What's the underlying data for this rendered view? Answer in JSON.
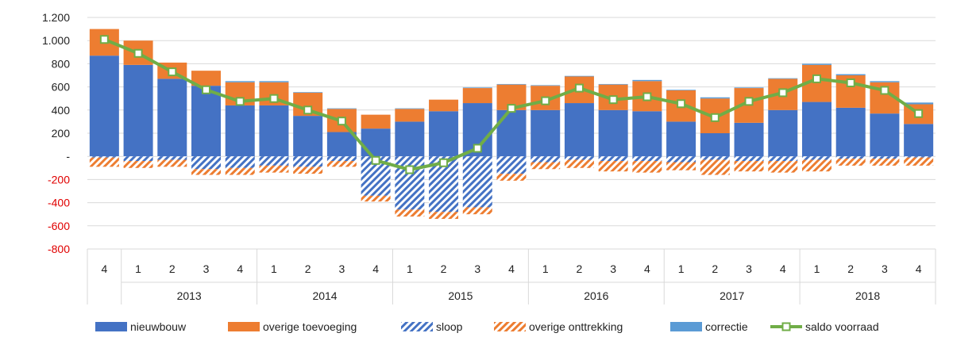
{
  "chart_data": {
    "type": "bar",
    "stacked": true,
    "title": "",
    "xlabel": "",
    "ylabel": "",
    "ylim": [
      -800,
      1200
    ],
    "y_ticks": [
      {
        "value": 1200,
        "label": "1.200"
      },
      {
        "value": 1000,
        "label": "1.000"
      },
      {
        "value": 800,
        "label": "800"
      },
      {
        "value": 600,
        "label": "600"
      },
      {
        "value": 400,
        "label": "400"
      },
      {
        "value": 200,
        "label": "200"
      },
      {
        "value": 0,
        "label": "-"
      },
      {
        "value": -200,
        "label": "-200"
      },
      {
        "value": -400,
        "label": "-400"
      },
      {
        "value": -600,
        "label": "-600"
      },
      {
        "value": -800,
        "label": "-800"
      }
    ],
    "negative_tick_color": "#e00000",
    "positive_tick_color": "#222222",
    "grid": true,
    "legend_position": "bottom",
    "categories": [
      "4",
      "1",
      "2",
      "3",
      "4",
      "1",
      "2",
      "3",
      "4",
      "1",
      "2",
      "3",
      "4",
      "1",
      "2",
      "3",
      "4",
      "1",
      "2",
      "3",
      "4",
      "1",
      "2",
      "3",
      "4"
    ],
    "year_groups": [
      {
        "label": "",
        "span": 1
      },
      {
        "label": "2013",
        "span": 4
      },
      {
        "label": "2014",
        "span": 4
      },
      {
        "label": "2015",
        "span": 4
      },
      {
        "label": "2016",
        "span": 4
      },
      {
        "label": "2017",
        "span": 4
      },
      {
        "label": "2018",
        "span": 4
      }
    ],
    "series": [
      {
        "name": "nieuwbouw",
        "kind": "bar",
        "color": "#4472c4",
        "pattern": "solid",
        "values": [
          870,
          790,
          670,
          610,
          440,
          440,
          350,
          210,
          240,
          300,
          390,
          460,
          400,
          400,
          460,
          400,
          390,
          300,
          200,
          290,
          400,
          470,
          420,
          370,
          280
        ]
      },
      {
        "name": "overige toevoeging",
        "kind": "bar",
        "color": "#ed7d31",
        "pattern": "solid",
        "values": [
          230,
          210,
          140,
          130,
          200,
          200,
          200,
          200,
          120,
          110,
          100,
          130,
          220,
          210,
          230,
          220,
          260,
          270,
          300,
          300,
          270,
          320,
          280,
          270,
          170
        ]
      },
      {
        "name": "correctie",
        "kind": "bar",
        "color": "#5b9bd5",
        "pattern": "solid",
        "values": [
          0,
          0,
          0,
          0,
          10,
          10,
          5,
          5,
          0,
          5,
          0,
          5,
          5,
          5,
          5,
          5,
          10,
          5,
          10,
          5,
          5,
          10,
          10,
          10,
          15
        ]
      },
      {
        "name": "sloop",
        "kind": "bar",
        "color": "#4472c4",
        "pattern": "hatch",
        "values": [
          -10,
          -40,
          -30,
          -110,
          -100,
          -80,
          -90,
          -40,
          -340,
          -460,
          -480,
          -440,
          -150,
          -50,
          -30,
          -40,
          -40,
          -50,
          -30,
          -40,
          -40,
          -30,
          -20,
          -20,
          -10
        ]
      },
      {
        "name": "overige onttrekking",
        "kind": "bar",
        "color": "#ed7d31",
        "pattern": "hatch",
        "values": [
          -80,
          -60,
          -60,
          -50,
          -60,
          -60,
          -60,
          -50,
          -50,
          -60,
          -60,
          -60,
          -60,
          -60,
          -70,
          -90,
          -100,
          -70,
          -130,
          -90,
          -100,
          -100,
          -60,
          -60,
          -70
        ]
      },
      {
        "name": "saldo voorraad",
        "kind": "line",
        "color": "#70ad47",
        "values": [
          1010,
          890,
          730,
          575,
          475,
          500,
          400,
          305,
          -35,
          -115,
          -55,
          70,
          415,
          480,
          590,
          490,
          515,
          455,
          335,
          475,
          550,
          670,
          635,
          570,
          370
        ]
      }
    ],
    "legend_order": [
      "nieuwbouw",
      "overige toevoeging",
      "sloop",
      "overige onttrekking",
      "correctie",
      "saldo voorraad"
    ]
  }
}
